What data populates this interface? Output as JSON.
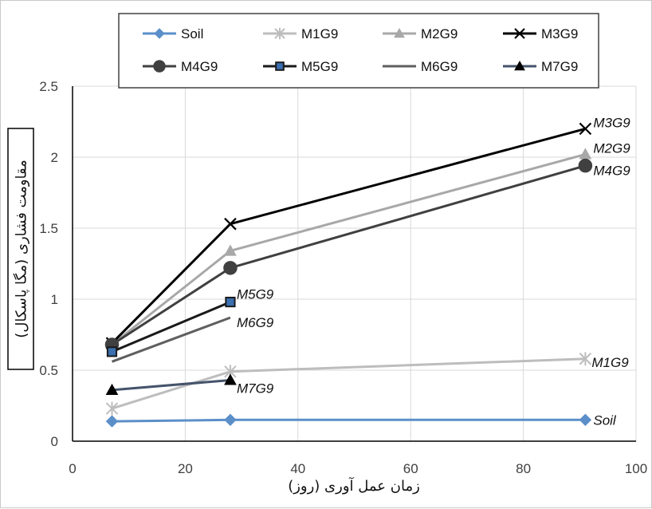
{
  "chart_data": {
    "type": "line",
    "xlabel": "زمان عمل آوری (روز)",
    "ylabel": "مقاومت فشاری (مگا پاسکال)",
    "xlim": [
      0,
      100
    ],
    "ylim": [
      0,
      2.5
    ],
    "x_ticks": [
      "0",
      "20",
      "40",
      "60",
      "80",
      "100"
    ],
    "y_ticks": [
      "0",
      "0.5",
      "1",
      "1.5",
      "2",
      "2.5"
    ],
    "grid": true,
    "legend_position": "top",
    "series": [
      {
        "name": "Soil",
        "color": "#5b8fc9",
        "marker": "diamond",
        "width": 3,
        "x": [
          7,
          28,
          91
        ],
        "y": [
          0.14,
          0.15,
          0.15
        ],
        "end_label": "Soil"
      },
      {
        "name": "M1G9",
        "color": "#bdbdbd",
        "marker": "star",
        "width": 3,
        "x": [
          7,
          28,
          91
        ],
        "y": [
          0.23,
          0.49,
          0.58
        ],
        "end_label": "M1G9"
      },
      {
        "name": "M2G9",
        "color": "#a8a8a8",
        "marker": "triangle",
        "width": 3,
        "x": [
          7,
          28,
          91
        ],
        "y": [
          0.68,
          1.34,
          2.02
        ],
        "end_label": "M2G9"
      },
      {
        "name": "M3G9",
        "color": "#000000",
        "marker": "x",
        "width": 3,
        "x": [
          7,
          28,
          91
        ],
        "y": [
          0.69,
          1.53,
          2.2
        ],
        "end_label": "M3G9"
      },
      {
        "name": "M4G9",
        "color": "#404040",
        "marker": "circle",
        "width": 3,
        "x": [
          7,
          28,
          91
        ],
        "y": [
          0.68,
          1.22,
          1.94
        ],
        "end_label": "M4G9"
      },
      {
        "name": "M5G9",
        "color": "#1a1a1a",
        "marker": "square",
        "marker_fill": "#3a6fb0",
        "width": 3,
        "x": [
          7,
          28
        ],
        "y": [
          0.63,
          0.98
        ],
        "end_label": "M5G9"
      },
      {
        "name": "M6G9",
        "color": "#5f5f5f",
        "marker": "none",
        "width": 3,
        "x": [
          7,
          28
        ],
        "y": [
          0.56,
          0.87
        ],
        "end_label": "M6G9"
      },
      {
        "name": "M7G9",
        "color": "#44546a",
        "marker": "triangle",
        "marker_fill": "#000000",
        "width": 3,
        "x": [
          7,
          28
        ],
        "y": [
          0.36,
          0.43
        ],
        "end_label": "M7G9"
      }
    ]
  }
}
